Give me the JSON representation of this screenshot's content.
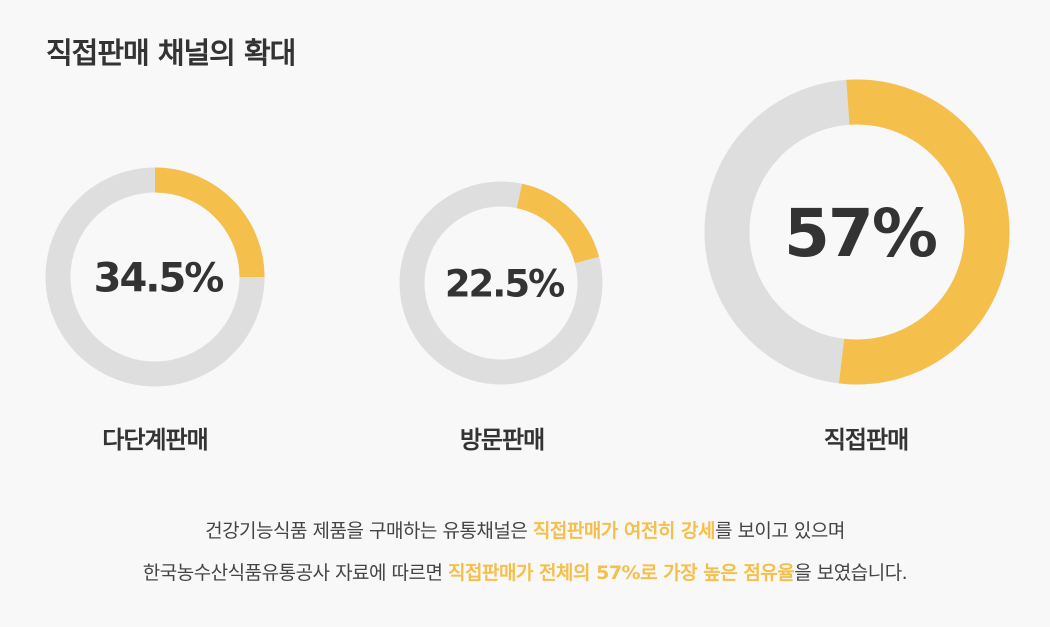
{
  "title": "직접판매 채널의 확대",
  "colors": {
    "fill": "#f5bf4c",
    "track": "#dedede",
    "text": "#333333"
  },
  "chart_data": {
    "type": "donut",
    "items": [
      {
        "category": "다단계판매",
        "label": "34.5%",
        "value": 34.5
      },
      {
        "category": "방문판매",
        "label": "22.5%",
        "value": 22.5
      },
      {
        "category": "직접판매",
        "label": "57%",
        "value": 57
      }
    ]
  },
  "description": {
    "line1": [
      "건강기능식품 제품을 구매하는 유통채널은 ",
      "직접판매가 여전히 강세",
      "를 보이고 있으며"
    ],
    "line2": [
      "한국농수산식품유통공사 자료에 따르면 ",
      "직접판매가 전체의 57%로 가장 높은 점유율",
      "을 보였습니다."
    ]
  }
}
